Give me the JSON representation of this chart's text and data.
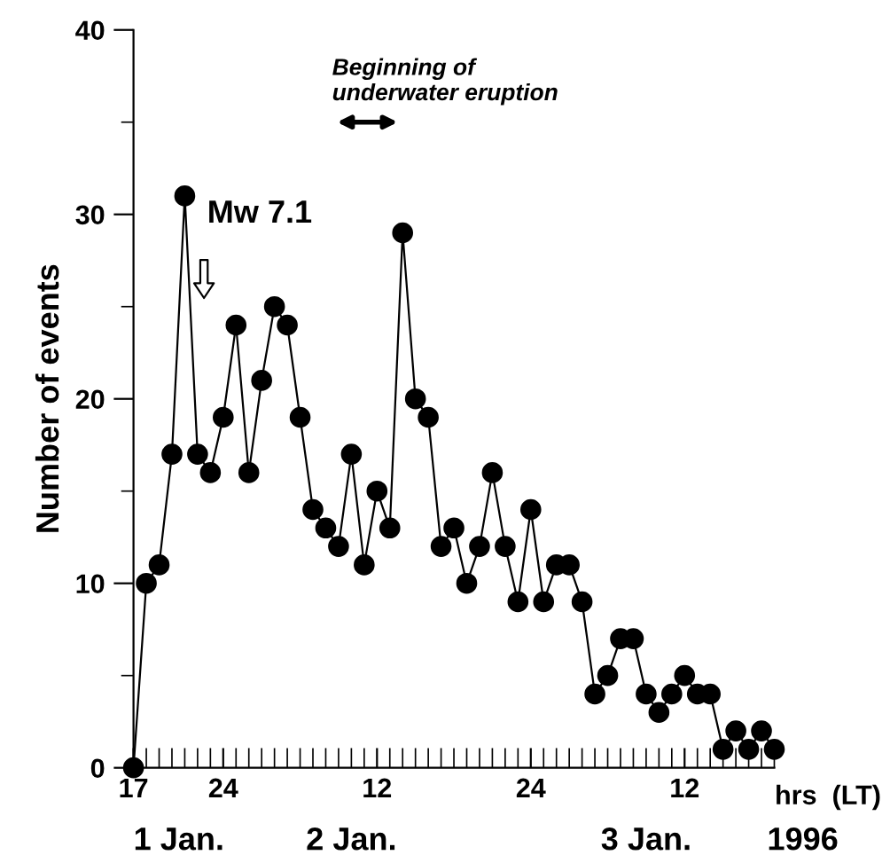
{
  "chart_data": {
    "type": "line",
    "x": [
      "1996-01-01T17:00",
      "1996-01-01T18:00",
      "1996-01-01T19:00",
      "1996-01-01T20:00",
      "1996-01-01T21:00",
      "1996-01-01T22:00",
      "1996-01-01T23:00",
      "1996-01-02T00:00",
      "1996-01-02T01:00",
      "1996-01-02T02:00",
      "1996-01-02T03:00",
      "1996-01-02T04:00",
      "1996-01-02T05:00",
      "1996-01-02T06:00",
      "1996-01-02T07:00",
      "1996-01-02T08:00",
      "1996-01-02T09:00",
      "1996-01-02T10:00",
      "1996-01-02T11:00",
      "1996-01-02T12:00",
      "1996-01-02T13:00",
      "1996-01-02T14:00",
      "1996-01-02T15:00",
      "1996-01-02T16:00",
      "1996-01-02T17:00",
      "1996-01-02T18:00",
      "1996-01-02T19:00",
      "1996-01-02T20:00",
      "1996-01-02T21:00",
      "1996-01-02T22:00",
      "1996-01-02T23:00",
      "1996-01-03T00:00",
      "1996-01-03T01:00",
      "1996-01-03T02:00",
      "1996-01-03T03:00",
      "1996-01-03T04:00",
      "1996-01-03T05:00",
      "1996-01-03T06:00",
      "1996-01-03T07:00",
      "1996-01-03T08:00",
      "1996-01-03T09:00",
      "1996-01-03T10:00",
      "1996-01-03T11:00",
      "1996-01-03T12:00",
      "1996-01-03T13:00",
      "1996-01-03T14:00",
      "1996-01-03T15:00",
      "1996-01-03T16:00",
      "1996-01-03T17:00",
      "1996-01-03T18:00",
      "1996-01-03T19:00"
    ],
    "series": [
      {
        "color": "#000000",
        "values": [
          0,
          10,
          11,
          17,
          31,
          17,
          16,
          19,
          24,
          16,
          21,
          25,
          24,
          19,
          14,
          13,
          12,
          17,
          11,
          15,
          13,
          29,
          20,
          19,
          12,
          13,
          10,
          12,
          16,
          12,
          9,
          14,
          9,
          11,
          11,
          9,
          4,
          5,
          7,
          7,
          4,
          3,
          4,
          5,
          4,
          4,
          1,
          2,
          1,
          2,
          1
        ]
      }
    ],
    "ylabel": "Number of events",
    "xlabel": "hrs  (LT)",
    "xlim": [
      "1996-01-01T17:00",
      "1996-01-03T19:00"
    ],
    "xticks": [
      {
        "value": "1996-01-01T17:00",
        "label": "17"
      },
      {
        "value": "1996-01-02T00:00",
        "label": "24"
      },
      {
        "value": "1996-01-02T12:00",
        "label": "12"
      },
      {
        "value": "1996-01-03T00:00",
        "label": "24"
      },
      {
        "value": "1996-01-03T12:00",
        "label": "12"
      }
    ],
    "ylim": [
      0,
      40
    ],
    "yticks": [
      0,
      10,
      20,
      30,
      40
    ],
    "marker": "circle",
    "line_style": "solid",
    "annotations": [
      "Mw 7.1",
      "Beginning of\nunderwater eruption",
      "1 Jan.",
      "2 Jan.",
      "3 Jan.",
      "1996"
    ]
  }
}
